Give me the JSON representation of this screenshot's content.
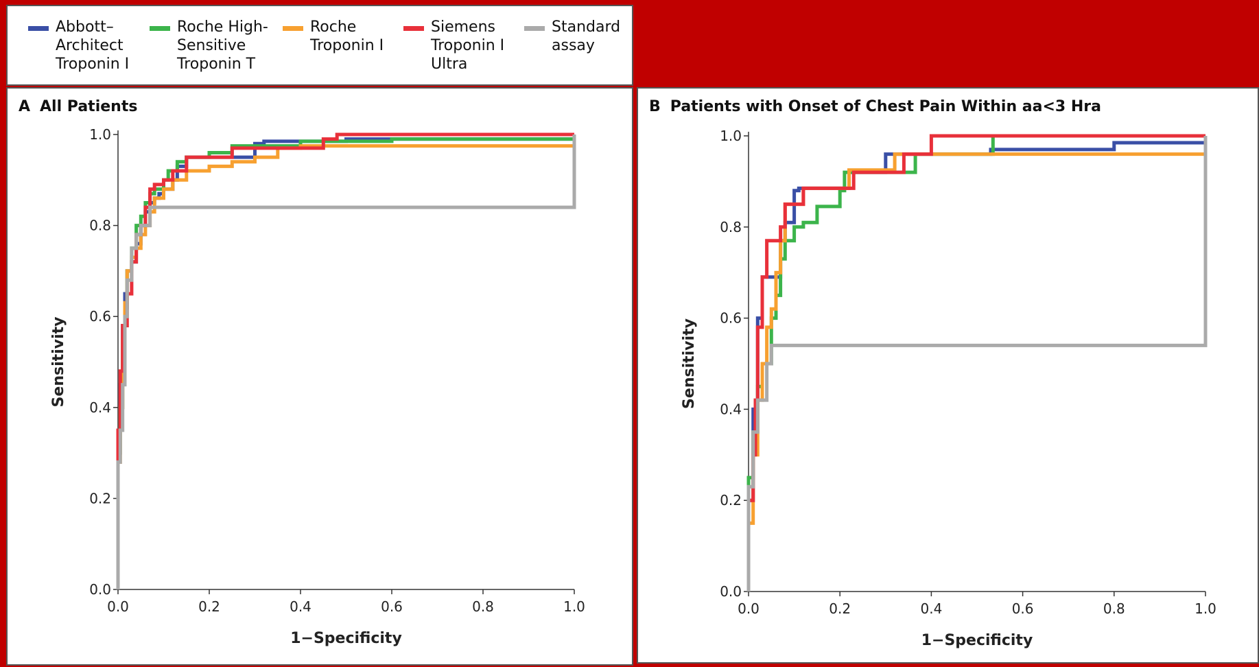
{
  "legend": {
    "items": [
      {
        "label": "Abbott–\nArchitect\nTroponin I",
        "color": "#3a4fa6"
      },
      {
        "label": "Roche High-\nSensitive\nTroponin T",
        "color": "#3cb44b"
      },
      {
        "label": "Roche\nTroponin I",
        "color": "#f7a030"
      },
      {
        "label": "Siemens\nTroponin I\nUltra",
        "color": "#e8303a"
      },
      {
        "label": "Standard\nassay",
        "color": "#aaaaaa"
      }
    ]
  },
  "panels": [
    {
      "letter": "A",
      "title": "All Patients"
    },
    {
      "letter": "B",
      "title": "Patients with Onset of Chest Pain Within aa<3 Hra"
    }
  ],
  "chart_data": [
    {
      "type": "line",
      "title": "All Patients",
      "xlabel": "1−Specificity",
      "ylabel": "Sensitivity",
      "xlim": [
        0,
        1
      ],
      "ylim": [
        0,
        1
      ],
      "xticks": [
        "0.0",
        "0.2",
        "0.4",
        "0.6",
        "0.8",
        "1.0"
      ],
      "yticks": [
        "0.0",
        "0.2",
        "0.4",
        "0.6",
        "0.8",
        "1.0"
      ],
      "series": [
        {
          "name": "Abbott–Architect Troponin I",
          "color": "#3a4fa6",
          "x": [
            0,
            0,
            0.005,
            0.01,
            0.015,
            0.02,
            0.03,
            0.04,
            0.05,
            0.06,
            0.07,
            0.08,
            0.09,
            0.1,
            0.12,
            0.13,
            0.15,
            0.2,
            0.3,
            0.32,
            0.5,
            1.0
          ],
          "y": [
            0,
            0.3,
            0.45,
            0.58,
            0.65,
            0.7,
            0.72,
            0.76,
            0.8,
            0.83,
            0.85,
            0.86,
            0.87,
            0.88,
            0.9,
            0.93,
            0.95,
            0.95,
            0.98,
            0.985,
            0.99,
            1.0
          ]
        },
        {
          "name": "Roche High-Sensitive Troponin T",
          "color": "#3cb44b",
          "x": [
            0,
            0,
            0.005,
            0.01,
            0.015,
            0.02,
            0.03,
            0.04,
            0.05,
            0.06,
            0.07,
            0.08,
            0.1,
            0.11,
            0.13,
            0.15,
            0.2,
            0.25,
            0.4,
            0.6,
            1.0
          ],
          "y": [
            0,
            0.3,
            0.4,
            0.5,
            0.62,
            0.7,
            0.75,
            0.8,
            0.82,
            0.85,
            0.87,
            0.88,
            0.9,
            0.92,
            0.94,
            0.95,
            0.96,
            0.975,
            0.985,
            0.99,
            1.0
          ]
        },
        {
          "name": "Roche Troponin I",
          "color": "#f7a030",
          "x": [
            0,
            0,
            0.005,
            0.01,
            0.015,
            0.02,
            0.03,
            0.04,
            0.05,
            0.06,
            0.07,
            0.08,
            0.1,
            0.12,
            0.15,
            0.2,
            0.25,
            0.3,
            0.33,
            0.35,
            0.4,
            0.7,
            1.0
          ],
          "y": [
            0,
            0.28,
            0.4,
            0.55,
            0.63,
            0.7,
            0.73,
            0.75,
            0.78,
            0.8,
            0.83,
            0.86,
            0.88,
            0.9,
            0.92,
            0.93,
            0.94,
            0.95,
            0.95,
            0.97,
            0.975,
            0.975,
            1.0
          ]
        },
        {
          "name": "Siemens Troponin I Ultra",
          "color": "#e8303a",
          "x": [
            0,
            0,
            0.005,
            0.01,
            0.02,
            0.03,
            0.04,
            0.05,
            0.06,
            0.07,
            0.08,
            0.1,
            0.12,
            0.15,
            0.2,
            0.25,
            0.3,
            0.4,
            0.45,
            0.48,
            1.0
          ],
          "y": [
            0,
            0.35,
            0.48,
            0.58,
            0.65,
            0.72,
            0.78,
            0.8,
            0.84,
            0.88,
            0.89,
            0.9,
            0.92,
            0.95,
            0.95,
            0.97,
            0.97,
            0.97,
            0.99,
            1.0,
            1.0
          ]
        },
        {
          "name": "Standard assay",
          "color": "#aaaaaa",
          "x": [
            0,
            0,
            0.005,
            0.01,
            0.015,
            0.02,
            0.03,
            0.04,
            0.05,
            0.07,
            1.0
          ],
          "y": [
            0,
            0.28,
            0.35,
            0.45,
            0.6,
            0.68,
            0.75,
            0.78,
            0.8,
            0.84,
            1.0
          ]
        }
      ]
    },
    {
      "type": "line",
      "title": "Patients with Onset of Chest Pain Within aa<3 Hra",
      "xlabel": "1−Specificity",
      "ylabel": "Sensitivity",
      "xlim": [
        0,
        1
      ],
      "ylim": [
        0,
        1
      ],
      "xticks": [
        "0.0",
        "0.2",
        "0.4",
        "0.6",
        "0.8",
        "1.0"
      ],
      "yticks": [
        "0.0",
        "0.2",
        "0.4",
        "0.6",
        "0.8",
        "1.0"
      ],
      "series": [
        {
          "name": "Abbott–Architect Troponin I",
          "color": "#3a4fa6",
          "x": [
            0,
            0,
            0.01,
            0.02,
            0.03,
            0.05,
            0.07,
            0.08,
            0.1,
            0.11,
            0.2,
            0.22,
            0.3,
            0.32,
            0.53,
            0.8,
            1.0
          ],
          "y": [
            0,
            0.2,
            0.4,
            0.6,
            0.69,
            0.69,
            0.77,
            0.81,
            0.88,
            0.885,
            0.885,
            0.92,
            0.96,
            0.96,
            0.97,
            0.985,
            1.0
          ]
        },
        {
          "name": "Roche High-Sensitive Troponin T",
          "color": "#3cb44b",
          "x": [
            0,
            0,
            0.01,
            0.02,
            0.03,
            0.05,
            0.06,
            0.07,
            0.08,
            0.1,
            0.12,
            0.15,
            0.2,
            0.21,
            0.36,
            0.365,
            0.53,
            0.535,
            1.0
          ],
          "y": [
            0,
            0.25,
            0.35,
            0.45,
            0.5,
            0.6,
            0.65,
            0.73,
            0.77,
            0.8,
            0.81,
            0.845,
            0.88,
            0.92,
            0.92,
            0.96,
            0.96,
            1.0,
            1.0
          ]
        },
        {
          "name": "Roche Troponin I",
          "color": "#f7a030",
          "x": [
            0,
            0,
            0.01,
            0.02,
            0.03,
            0.04,
            0.05,
            0.06,
            0.07,
            0.08,
            0.1,
            0.12,
            0.2,
            0.22,
            0.3,
            0.32,
            0.53,
            0.63,
            1.0
          ],
          "y": [
            0,
            0.15,
            0.3,
            0.42,
            0.5,
            0.58,
            0.62,
            0.7,
            0.77,
            0.85,
            0.85,
            0.885,
            0.885,
            0.925,
            0.925,
            0.96,
            0.96,
            0.96,
            1.0
          ]
        },
        {
          "name": "Siemens Troponin I Ultra",
          "color": "#e8303a",
          "x": [
            0,
            0,
            0.01,
            0.015,
            0.02,
            0.03,
            0.04,
            0.06,
            0.07,
            0.08,
            0.1,
            0.12,
            0.2,
            0.23,
            0.33,
            0.34,
            0.4,
            1.0
          ],
          "y": [
            0,
            0.2,
            0.3,
            0.42,
            0.58,
            0.69,
            0.77,
            0.77,
            0.8,
            0.85,
            0.85,
            0.885,
            0.885,
            0.92,
            0.92,
            0.96,
            1.0,
            1.0
          ]
        },
        {
          "name": "Standard assay",
          "color": "#aaaaaa",
          "x": [
            0,
            0,
            0.01,
            0.02,
            0.03,
            0.04,
            0.05,
            1.0
          ],
          "y": [
            0,
            0.23,
            0.35,
            0.42,
            0.42,
            0.5,
            0.54,
            1.0
          ]
        }
      ]
    }
  ]
}
